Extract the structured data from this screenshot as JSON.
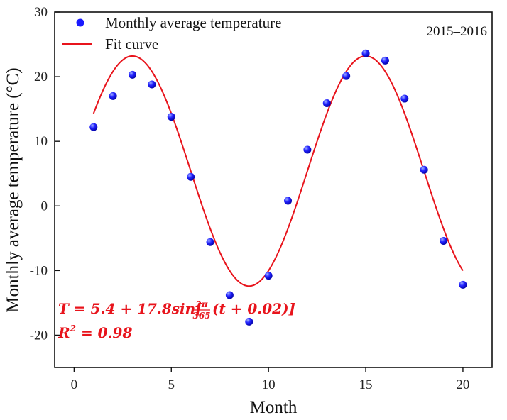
{
  "chart_data": {
    "type": "scatter",
    "title": "",
    "xlabel": "Month",
    "ylabel": "Monthly average temperature (°C)",
    "xlim": [
      -1,
      21.5
    ],
    "ylim": [
      -25,
      30
    ],
    "xticks": [
      0,
      5,
      10,
      15,
      20
    ],
    "yticks": [
      -20,
      -10,
      0,
      10,
      20,
      30
    ],
    "grid": false,
    "legend_position": "top-left",
    "series": [
      {
        "name": "Monthly average temperature",
        "kind": "scatter",
        "color": "#1a1aff",
        "x": [
          1,
          2,
          3,
          4,
          5,
          6,
          7,
          8,
          9,
          10,
          11,
          12,
          13,
          14,
          15,
          16,
          17,
          18,
          19,
          20
        ],
        "y": [
          12.2,
          17.0,
          20.3,
          18.8,
          13.8,
          4.5,
          -5.6,
          -13.8,
          -17.9,
          -10.8,
          0.8,
          8.7,
          15.9,
          20.1,
          23.6,
          22.5,
          16.6,
          5.6,
          -5.4,
          -12.2
        ]
      },
      {
        "name": "Fit curve",
        "kind": "line",
        "color": "#e8141c",
        "x_range": [
          1,
          20
        ],
        "model": {
          "offset": 5.4,
          "amplitude": 17.8,
          "peak_x": [
            3,
            15
          ],
          "period_months": 12
        }
      }
    ],
    "annotations": {
      "period": "2015–2016",
      "equation_lhs": "T = 5.4 + 17.8sin[",
      "equation_frac_num": "2π",
      "equation_frac_den": "365",
      "equation_rhs": "(t + 0.02)]",
      "r_squared_label": "R",
      "r_squared_exp": "2",
      "r_squared_value": " = 0.98"
    }
  }
}
